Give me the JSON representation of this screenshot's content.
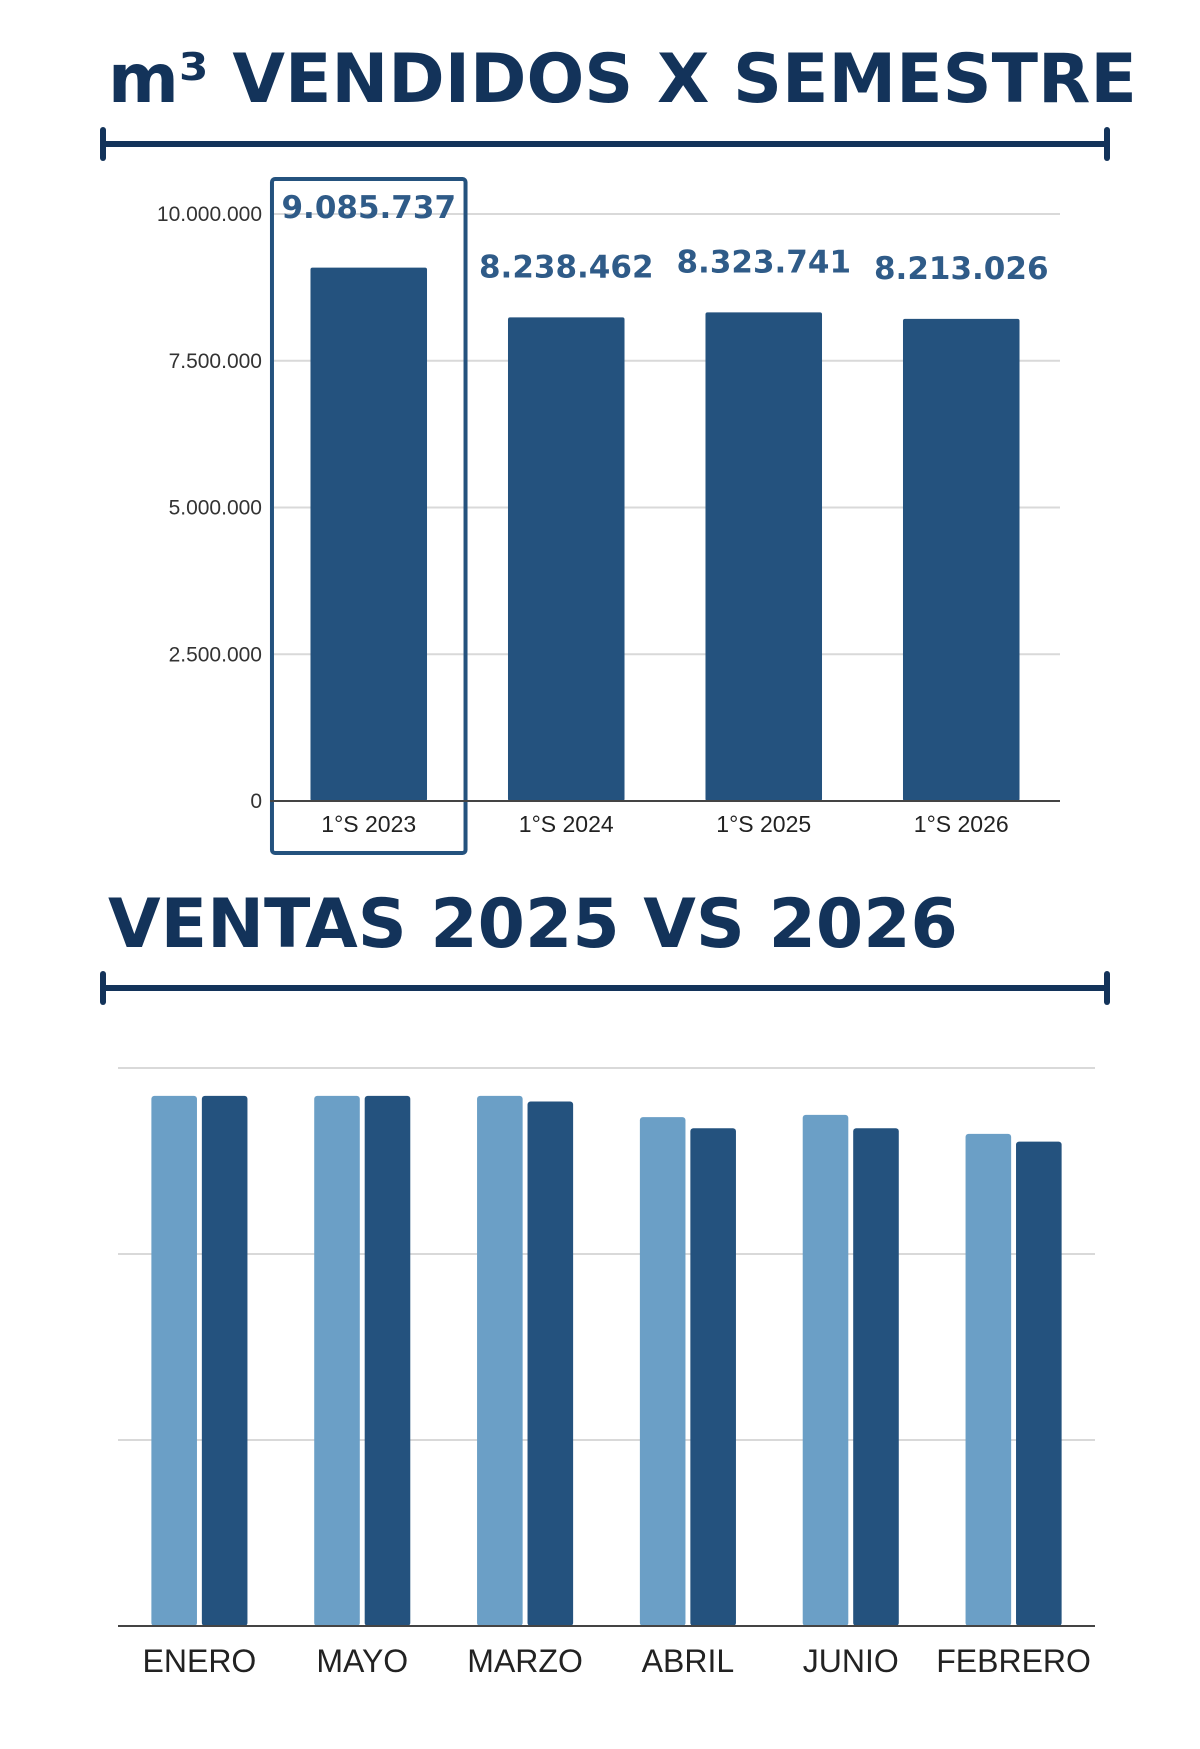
{
  "colors": {
    "title": "#13335a",
    "bar_dark": "#24527e",
    "bar_light": "#6b9fc6",
    "grid": "#d9d9d9",
    "axis": "#444444",
    "highlight_box": "#24527e"
  },
  "chart_data": [
    {
      "type": "bar",
      "title": "m³ VENDIDOS X SEMESTRE",
      "categories": [
        "1°S 2023",
        "1°S 2024",
        "1°S 2025",
        "1°S 2026"
      ],
      "values": [
        9085737,
        8238462,
        8323741,
        8213026
      ],
      "value_labels": [
        "9.085.737",
        "8.238.462",
        "8.323.741",
        "8.213.026"
      ],
      "ylim": [
        0,
        10000000
      ],
      "yticks": [
        0,
        2500000,
        5000000,
        7500000,
        10000000
      ],
      "ytick_labels": [
        "0",
        "2.500.000",
        "5.000.000",
        "7.500.000",
        "10.000.000"
      ],
      "grid": true,
      "highlighted_category": "1°S 2023"
    },
    {
      "type": "bar",
      "title": "VENTAS 2025 VS 2026",
      "categories": [
        "ENERO",
        "MAYO",
        "MARZO",
        "ABRIL",
        "JUNIO",
        "FEBRERO"
      ],
      "series": [
        {
          "values": [
            95,
            95,
            95,
            91.2,
            91.6,
            88.2
          ],
          "color": "#6b9fc6"
        },
        {
          "values": [
            95,
            95,
            94,
            89.2,
            89.2,
            86.8
          ],
          "color": "#24527e"
        }
      ],
      "ylim": [
        0,
        100
      ],
      "grid": true,
      "legend": "none"
    }
  ]
}
